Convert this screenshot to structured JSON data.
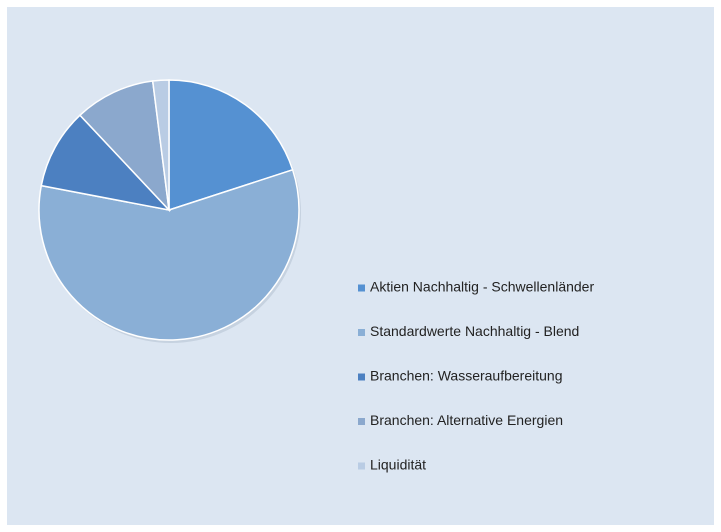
{
  "chart_data": {
    "type": "pie",
    "categories": [
      "Aktien Nachhaltig - Schwellenländer",
      "Standardwerte Nachhaltig - Blend",
      "Branchen: Wasseraufbereitung",
      "Branchen: Alternative Energien",
      "Liquidität"
    ],
    "values": [
      20,
      58,
      10,
      10,
      2
    ],
    "colors": [
      "#5591d2",
      "#8aafd6",
      "#4c80c1",
      "#8ba8cd",
      "#b9cce4"
    ],
    "legend": "right"
  }
}
